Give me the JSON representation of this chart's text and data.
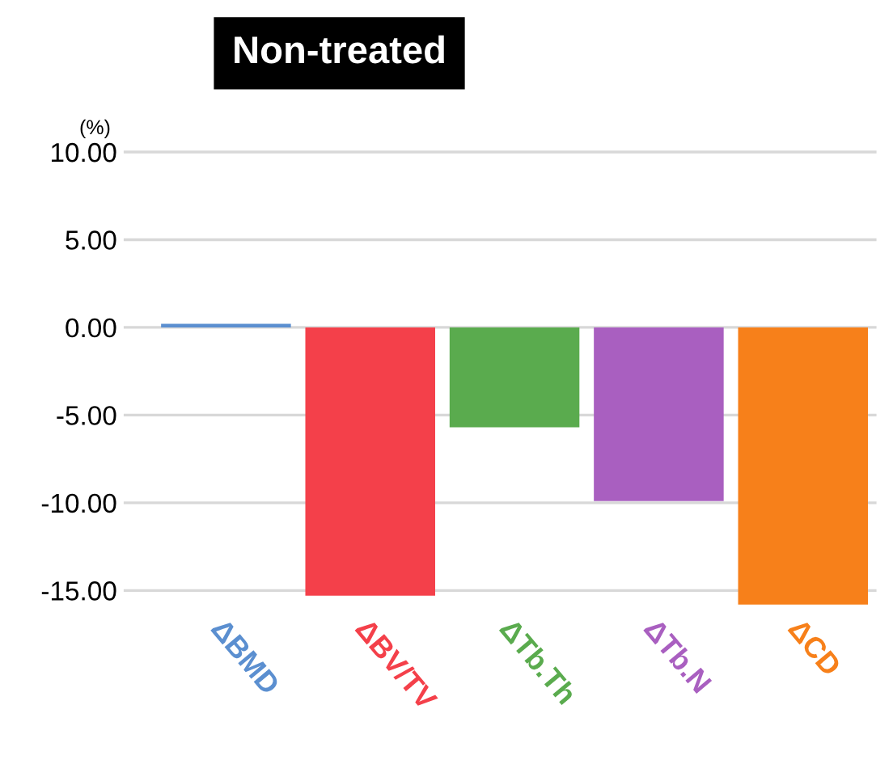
{
  "chart_data": {
    "type": "bar",
    "title": "Non-treated",
    "ylabel": "(%)",
    "categories": [
      "ΔBMD",
      "ΔBV/TV",
      "ΔTb.Th",
      "ΔTb.N",
      "ΔCD"
    ],
    "values": [
      0.2,
      -15.3,
      -5.7,
      -9.9,
      -15.8
    ],
    "colors": [
      "#5b8fd0",
      "#f4404a",
      "#5aab4e",
      "#a95fc0",
      "#f7801a"
    ],
    "ylim": [
      -16,
      10
    ],
    "yticks": [
      {
        "value": -15,
        "label": "-15.00"
      },
      {
        "value": -10,
        "label": "-10.00"
      },
      {
        "value": -5,
        "label": "-5.00"
      },
      {
        "value": 0,
        "label": "0.00"
      },
      {
        "value": 5,
        "label": "5.00"
      },
      {
        "value": 10,
        "label": "10.00"
      }
    ],
    "grid": "y",
    "legend": false
  }
}
